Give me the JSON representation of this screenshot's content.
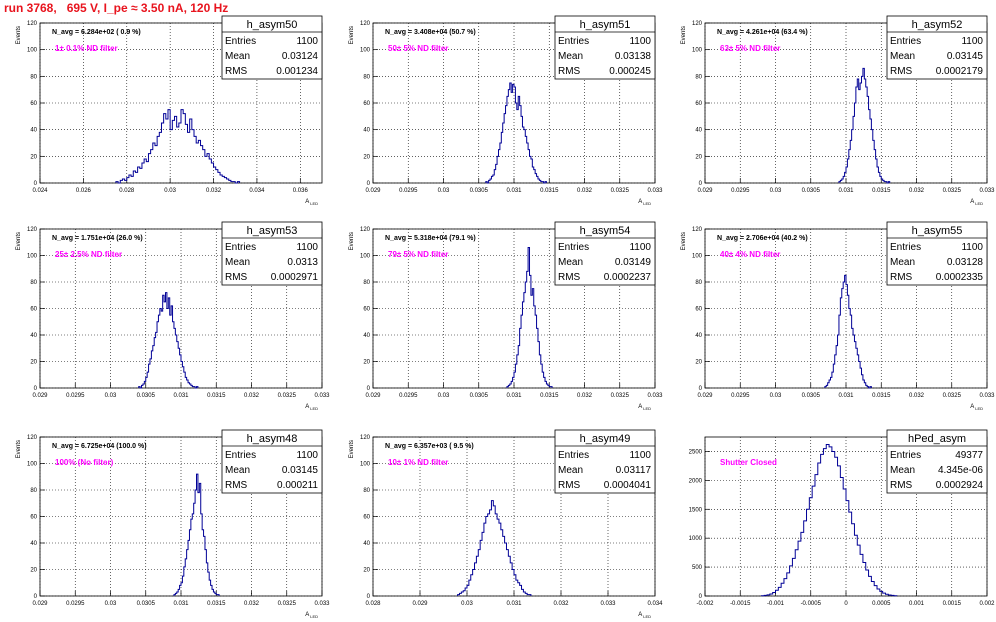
{
  "title": "run 3768,   695 V, I_pe ≈ 3.50 nA, 120 Hz",
  "chart_data": [
    {
      "type": "bar",
      "name": "h_asym50",
      "stats": {
        "entries": "1100",
        "mean": "0.03124",
        "rms": "0.001234"
      },
      "navg": "N_avg = 6.284e+02 ( 0.9 %)",
      "label": "1± 0.1% ND filter",
      "ylabel": "Events",
      "xlabel": "A_LED",
      "xlim": [
        0.024,
        0.037
      ],
      "ylim": [
        0,
        120
      ],
      "xticks": [
        "0.024",
        "0.026",
        "0.028",
        "0.03",
        "0.032",
        "0.034",
        "0.036"
      ],
      "xtick_values": [
        0.024,
        0.026,
        0.028,
        0.03,
        0.032,
        0.034,
        0.036
      ],
      "yticks": [
        0,
        20,
        40,
        60,
        80,
        100,
        120
      ],
      "bin_start": 0.0275,
      "bin_width": 0.0001,
      "counts": [
        1,
        0,
        2,
        3,
        2,
        4,
        6,
        5,
        9,
        8,
        12,
        11,
        15,
        18,
        16,
        22,
        25,
        30,
        28,
        35,
        38,
        45,
        52,
        48,
        55,
        40,
        47,
        50,
        42,
        45,
        55,
        52,
        44,
        38,
        48,
        40,
        35,
        30,
        32,
        28,
        25,
        20,
        22,
        18,
        15,
        12,
        10,
        8,
        6,
        5,
        4,
        3,
        2,
        1,
        1,
        0,
        1
      ]
    },
    {
      "type": "bar",
      "name": "h_asym51",
      "stats": {
        "entries": "1100",
        "mean": "0.03138",
        "rms": "0.000245"
      },
      "navg": "N_avg = 3.408e+04 (50.7 %)",
      "label": "50± 5% ND filter",
      "ylabel": "Events",
      "xlabel": "A_LED",
      "xlim": [
        0.029,
        0.033
      ],
      "ylim": [
        0,
        120
      ],
      "xticks": [
        "0.029",
        "0.0295",
        "0.03",
        "0.0305",
        "0.031",
        "0.0315",
        "0.032",
        "0.0325",
        "0.033"
      ],
      "xtick_values": [
        0.029,
        0.0295,
        0.03,
        0.0305,
        0.031,
        0.0315,
        0.032,
        0.0325,
        0.033
      ],
      "yticks": [
        0,
        20,
        40,
        60,
        80,
        100,
        120
      ],
      "bin_start": 0.0306,
      "bin_width": 2e-05,
      "counts": [
        1,
        0,
        2,
        3,
        5,
        6,
        10,
        14,
        20,
        25,
        30,
        38,
        45,
        52,
        58,
        65,
        70,
        75,
        68,
        74,
        72,
        60,
        55,
        65,
        58,
        50,
        42,
        40,
        35,
        30,
        25,
        20,
        18,
        12,
        10,
        7,
        5,
        3,
        2,
        1,
        1,
        0,
        1
      ]
    },
    {
      "type": "bar",
      "name": "h_asym52",
      "stats": {
        "entries": "1100",
        "mean": "0.03145",
        "rms": "0.0002179"
      },
      "navg": "N_avg = 4.261e+04 (63.4 %)",
      "label": "63± 5% ND filter",
      "ylabel": "Events",
      "xlabel": "A_LED",
      "xlim": [
        0.029,
        0.033
      ],
      "ylim": [
        0,
        120
      ],
      "xticks": [
        "0.029",
        "0.0295",
        "0.03",
        "0.0305",
        "0.031",
        "0.0315",
        "0.032",
        "0.0325",
        "0.033"
      ],
      "xtick_values": [
        0.029,
        0.0295,
        0.03,
        0.0305,
        0.031,
        0.0315,
        0.032,
        0.0325,
        0.033
      ],
      "yticks": [
        0,
        20,
        40,
        60,
        80,
        100,
        120
      ],
      "bin_start": 0.0309,
      "bin_width": 2e-05,
      "counts": [
        1,
        2,
        3,
        5,
        8,
        12,
        18,
        25,
        32,
        40,
        50,
        60,
        72,
        78,
        70,
        75,
        80,
        86,
        78,
        72,
        65,
        55,
        48,
        40,
        32,
        25,
        18,
        12,
        8,
        5,
        3,
        2,
        1,
        1,
        0,
        1
      ]
    },
    {
      "type": "bar",
      "name": "h_asym53",
      "stats": {
        "entries": "1100",
        "mean": "0.0313",
        "rms": "0.0002971"
      },
      "navg": "N_avg = 1.751e+04 (26.0 %)",
      "label": "25± 2.5% ND filter",
      "ylabel": "Events",
      "xlabel": "A_LED",
      "xlim": [
        0.029,
        0.033
      ],
      "ylim": [
        0,
        120
      ],
      "xticks": [
        "0.029",
        "0.0295",
        "0.03",
        "0.0305",
        "0.031",
        "0.0315",
        "0.032",
        "0.0325",
        "0.033"
      ],
      "xtick_values": [
        0.029,
        0.0295,
        0.03,
        0.0305,
        0.031,
        0.0315,
        0.032,
        0.0325,
        0.033
      ],
      "yticks": [
        0,
        20,
        40,
        60,
        80,
        100,
        120
      ],
      "bin_start": 0.0304,
      "bin_width": 2e-05,
      "counts": [
        1,
        0,
        2,
        3,
        5,
        8,
        12,
        18,
        22,
        28,
        32,
        38,
        42,
        50,
        55,
        60,
        58,
        70,
        65,
        72,
        60,
        68,
        55,
        62,
        50,
        45,
        40,
        35,
        30,
        25,
        20,
        16,
        12,
        8,
        6,
        4,
        3,
        2,
        1,
        1,
        0,
        1
      ]
    },
    {
      "type": "bar",
      "name": "h_asym54",
      "stats": {
        "entries": "1100",
        "mean": "0.03149",
        "rms": "0.0002237"
      },
      "navg": "N_avg = 5.318e+04 (79.1 %)",
      "label": "79± 5% ND filter",
      "ylabel": "Events",
      "xlabel": "A_LED",
      "xlim": [
        0.029,
        0.033
      ],
      "ylim": [
        0,
        120
      ],
      "xticks": [
        "0.029",
        "0.0295",
        "0.03",
        "0.0305",
        "0.031",
        "0.0315",
        "0.032",
        "0.0325",
        "0.033"
      ],
      "xtick_values": [
        0.029,
        0.0295,
        0.03,
        0.0305,
        0.031,
        0.0315,
        0.032,
        0.0325,
        0.033
      ],
      "yticks": [
        0,
        20,
        40,
        60,
        80,
        100,
        120
      ],
      "bin_start": 0.0309,
      "bin_width": 2e-05,
      "counts": [
        1,
        2,
        3,
        5,
        8,
        12,
        18,
        25,
        32,
        45,
        55,
        65,
        72,
        80,
        88,
        106,
        85,
        70,
        75,
        62,
        55,
        45,
        35,
        25,
        18,
        12,
        8,
        5,
        3,
        2,
        1,
        1
      ]
    },
    {
      "type": "bar",
      "name": "h_asym55",
      "stats": {
        "entries": "1100",
        "mean": "0.03128",
        "rms": "0.0002335"
      },
      "navg": "N_avg = 2.706e+04 (40.2 %)",
      "label": "40± 4% ND filter",
      "ylabel": "Events",
      "xlabel": "A_LED",
      "xlim": [
        0.029,
        0.033
      ],
      "ylim": [
        0,
        120
      ],
      "xticks": [
        "0.029",
        "0.0295",
        "0.03",
        "0.0305",
        "0.031",
        "0.0315",
        "0.032",
        "0.0325",
        "0.033"
      ],
      "xtick_values": [
        0.029,
        0.0295,
        0.03,
        0.0305,
        0.031,
        0.0315,
        0.032,
        0.0325,
        0.033
      ],
      "yticks": [
        0,
        20,
        40,
        60,
        80,
        100,
        120
      ],
      "bin_start": 0.0307,
      "bin_width": 2e-05,
      "counts": [
        1,
        2,
        4,
        6,
        8,
        12,
        18,
        25,
        32,
        40,
        55,
        68,
        75,
        80,
        85,
        78,
        70,
        60,
        55,
        45,
        40,
        35,
        30,
        25,
        20,
        15,
        10,
        6,
        4,
        2,
        1,
        0,
        1
      ]
    },
    {
      "type": "bar",
      "name": "h_asym48",
      "stats": {
        "entries": "1100",
        "mean": "0.03145",
        "rms": "0.000211"
      },
      "navg": "N_avg = 6.725e+04 (100.0 %)",
      "label": "100% (No filter)",
      "ylabel": "Events",
      "xlabel": "A_LED",
      "xlim": [
        0.029,
        0.033
      ],
      "ylim": [
        0,
        120
      ],
      "xticks": [
        "0.029",
        "0.0295",
        "0.03",
        "0.0305",
        "0.031",
        "0.0315",
        "0.032",
        "0.0325",
        "0.033"
      ],
      "xtick_values": [
        0.029,
        0.0295,
        0.03,
        0.0305,
        0.031,
        0.0315,
        0.032,
        0.0325,
        0.033
      ],
      "yticks": [
        0,
        20,
        40,
        60,
        80,
        100,
        120
      ],
      "bin_start": 0.0309,
      "bin_width": 2e-05,
      "counts": [
        1,
        2,
        3,
        5,
        8,
        10,
        15,
        22,
        28,
        35,
        42,
        50,
        58,
        62,
        70,
        80,
        92,
        78,
        85,
        62,
        50,
        45,
        35,
        25,
        18,
        12,
        8,
        5,
        3,
        2,
        1,
        1
      ]
    },
    {
      "type": "bar",
      "name": "h_asym49",
      "stats": {
        "entries": "1100",
        "mean": "0.03117",
        "rms": "0.0004041"
      },
      "navg": "N_avg = 6.357e+03 ( 9.5 %)",
      "label": "10± 1% ND filter",
      "ylabel": "Events",
      "xlabel": "A_LED",
      "xlim": [
        0.028,
        0.034
      ],
      "ylim": [
        0,
        120
      ],
      "xticks": [
        "0.028",
        "0.029",
        "0.03",
        "0.031",
        "0.032",
        "0.033",
        "0.034"
      ],
      "xtick_values": [
        0.028,
        0.029,
        0.03,
        0.031,
        0.032,
        0.033,
        0.034
      ],
      "yticks": [
        0,
        20,
        40,
        60,
        80,
        100,
        120
      ],
      "bin_start": 0.0298,
      "bin_width": 4e-05,
      "counts": [
        1,
        2,
        3,
        4,
        6,
        8,
        12,
        16,
        20,
        25,
        30,
        35,
        42,
        48,
        55,
        60,
        62,
        65,
        72,
        68,
        62,
        58,
        55,
        50,
        45,
        40,
        35,
        30,
        25,
        20,
        16,
        12,
        10,
        8,
        5,
        3,
        2,
        1,
        1
      ]
    },
    {
      "type": "bar",
      "name": "hPed_asym",
      "stats": {
        "entries": "49377",
        "mean": "4.345e-06",
        "rms": "0.0002924"
      },
      "navg": "",
      "label": "Shutter Closed",
      "ylabel": "",
      "xlabel": "",
      "xlim": [
        -0.002,
        0.002
      ],
      "ylim": [
        0,
        2750
      ],
      "xticks": [
        "-0.002",
        "-0.0015",
        "-0.001",
        "-0.0005",
        "0",
        "0.0005",
        "0.001",
        "0.0015",
        "0.002"
      ],
      "xtick_values": [
        -0.002,
        -0.0015,
        -0.001,
        -0.0005,
        0,
        0.0005,
        0.001,
        0.0015,
        0.002
      ],
      "yticks": [
        0,
        500,
        1000,
        1500,
        2000,
        2500
      ],
      "bin_start": -0.0012,
      "bin_width": 4e-05,
      "counts": [
        5,
        10,
        20,
        35,
        60,
        100,
        150,
        220,
        300,
        400,
        520,
        650,
        800,
        950,
        1100,
        1300,
        1500,
        1700,
        1900,
        2100,
        2300,
        2450,
        2550,
        2620,
        2580,
        2500,
        2400,
        2250,
        2050,
        1850,
        1650,
        1450,
        1250,
        1050,
        880,
        720,
        580,
        450,
        340,
        250,
        180,
        120,
        80,
        50,
        30,
        18,
        10,
        5
      ]
    }
  ]
}
